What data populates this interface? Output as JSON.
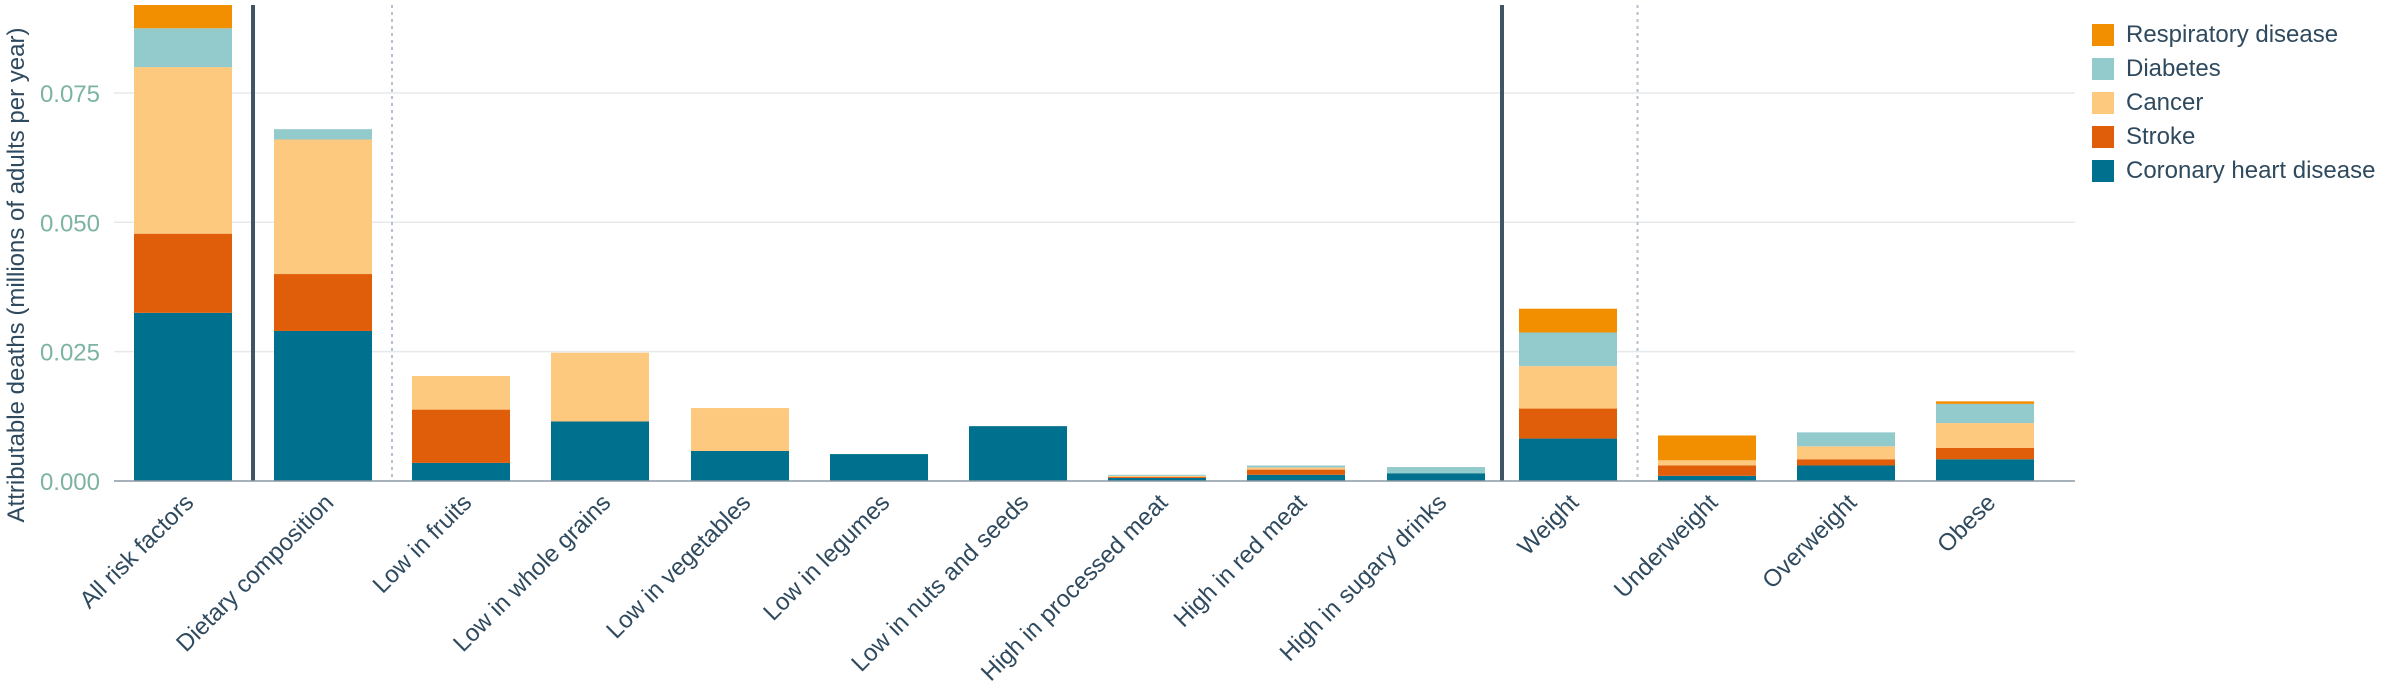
{
  "chart_data": {
    "type": "bar",
    "stacked": true,
    "ylabel": "Attributable deaths (millions of adults per year)",
    "ylim": [
      0,
      0.092
    ],
    "yticks": [
      "0.000",
      "0.025",
      "0.050",
      "0.075"
    ],
    "ytick_values": [
      0,
      0.025,
      0.05,
      0.075
    ],
    "grid": true,
    "legend_position": "top-right",
    "categories": [
      "All risk factors",
      "Dietary composition",
      "Low in fruits",
      "Low in whole grains",
      "Low in vegetables",
      "Low in legumes",
      "Low in nuts and seeds",
      "High in processed meat",
      "High in red meat",
      "High in sugary drinks",
      "Weight",
      "Underweight",
      "Overweight",
      "Obese"
    ],
    "separators": [
      {
        "after": "All risk factors",
        "style": "solid"
      },
      {
        "after": "Dietary composition",
        "style": "dotted"
      },
      {
        "after": "High in sugary drinks",
        "style": "solid"
      },
      {
        "after": "Weight",
        "style": "dotted"
      }
    ],
    "series": [
      {
        "name": "Coronary heart disease",
        "color": "#00708f",
        "values": [
          0.0325,
          0.029,
          0.0035,
          0.0115,
          0.0058,
          0.0052,
          0.0106,
          0.0006,
          0.0012,
          0.0015,
          0.0082,
          0.001,
          0.003,
          0.0042
        ]
      },
      {
        "name": "Stroke",
        "color": "#e05d0a",
        "values": [
          0.0153,
          0.011,
          0.0103,
          0,
          0,
          0,
          0,
          0.0002,
          0.001,
          0,
          0.0058,
          0.002,
          0.0012,
          0.0022
        ]
      },
      {
        "name": "Cancer",
        "color": "#fdc97e",
        "values": [
          0.0322,
          0.026,
          0.0065,
          0.0133,
          0.0083,
          0,
          0,
          0.0002,
          0.0004,
          0,
          0.0082,
          0.001,
          0.0025,
          0.0048
        ]
      },
      {
        "name": "Diabetes",
        "color": "#93cacb",
        "values": [
          0.0075,
          0.002,
          0,
          0,
          0,
          0,
          0,
          0.0002,
          0.0004,
          0.0012,
          0.0065,
          0,
          0.0027,
          0.0037
        ]
      },
      {
        "name": "Respiratory disease",
        "color": "#f18f01",
        "values": [
          0.0045,
          0,
          0,
          0,
          0,
          0,
          0,
          0,
          0,
          0,
          0.0046,
          0.0048,
          0,
          0.0005
        ]
      }
    ],
    "legend_order": [
      "Respiratory disease",
      "Diabetes",
      "Cancer",
      "Stroke",
      "Coronary heart disease"
    ]
  }
}
